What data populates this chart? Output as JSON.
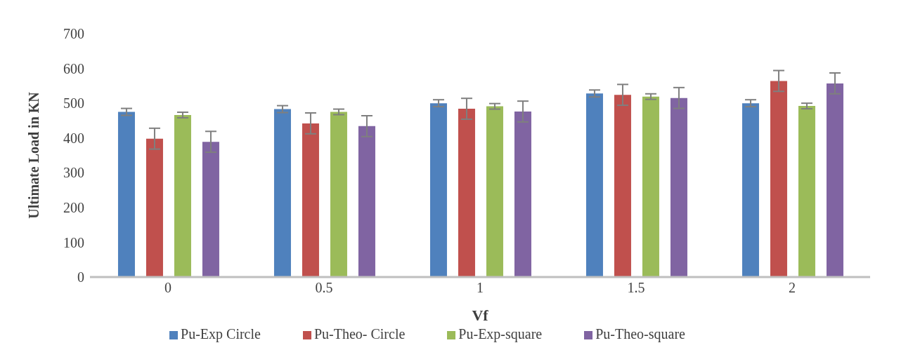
{
  "chart_data": {
    "type": "bar",
    "xlabel": "Vf",
    "ylabel": "Ultimate Load in KN",
    "categories": [
      "0",
      "0.5",
      "1",
      "1.5",
      "2"
    ],
    "series": [
      {
        "name": "Pu-Exp Circle",
        "color": "#4f81bd",
        "values": [
          475,
          483,
          500,
          528,
          500
        ],
        "errors": [
          10,
          10,
          10,
          10,
          10
        ]
      },
      {
        "name": "Pu-Theo- Circle",
        "color": "#c0504d",
        "values": [
          398,
          442,
          484,
          524,
          564
        ],
        "errors": [
          30,
          30,
          30,
          30,
          30
        ]
      },
      {
        "name": "Pu-Exp-square",
        "color": "#9bbb59",
        "values": [
          466,
          475,
          491,
          519,
          492
        ],
        "errors": [
          8,
          8,
          8,
          8,
          8
        ]
      },
      {
        "name": "Pu-Theo-square",
        "color": "#8064a2",
        "values": [
          389,
          434,
          476,
          515,
          557
        ],
        "errors": [
          30,
          30,
          30,
          30,
          30
        ]
      }
    ],
    "ylim": [
      0,
      700
    ],
    "yticks": [
      0,
      100,
      200,
      300,
      400,
      500,
      600,
      700
    ],
    "grid": false,
    "legend": "bottom"
  }
}
